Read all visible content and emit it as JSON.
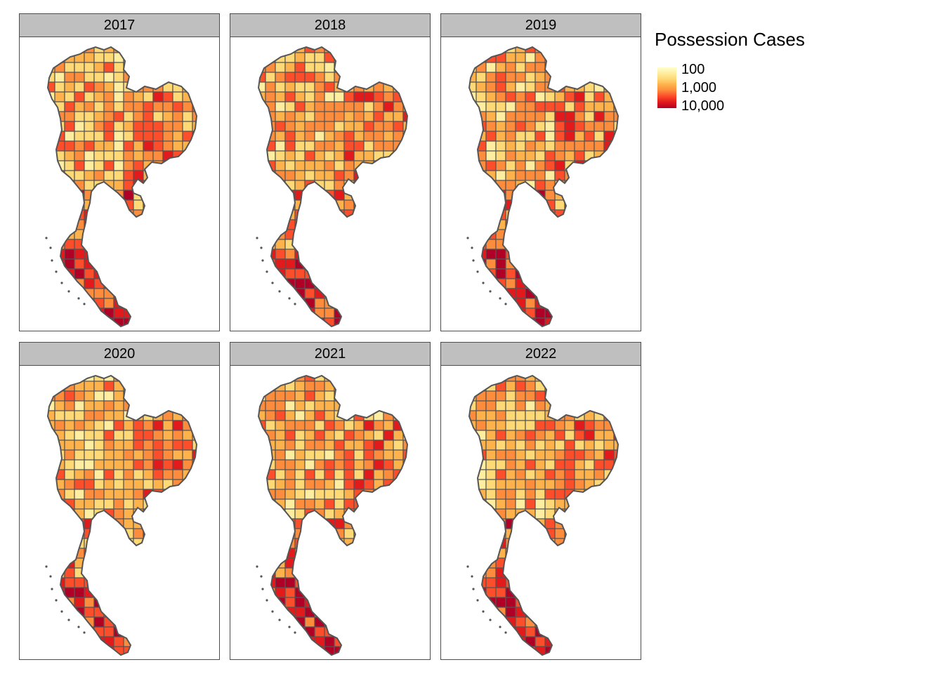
{
  "legend": {
    "title": "Possession Cases",
    "labels": [
      "100",
      "1,000",
      "10,000"
    ],
    "scale": "log",
    "colors": [
      "#ffffcc",
      "#ffeda0",
      "#fed976",
      "#feb24c",
      "#fd8d3c",
      "#fc4e2a",
      "#e31a1c",
      "#b10026"
    ]
  },
  "panels": [
    {
      "year": "2017"
    },
    {
      "year": "2018"
    },
    {
      "year": "2019"
    },
    {
      "year": "2020"
    },
    {
      "year": "2021"
    },
    {
      "year": "2022"
    }
  ],
  "colors": {
    "background": "#ffffff",
    "strip": "#bfbfbf",
    "border": "#4d4d4d",
    "map_outline": "#555555"
  }
}
